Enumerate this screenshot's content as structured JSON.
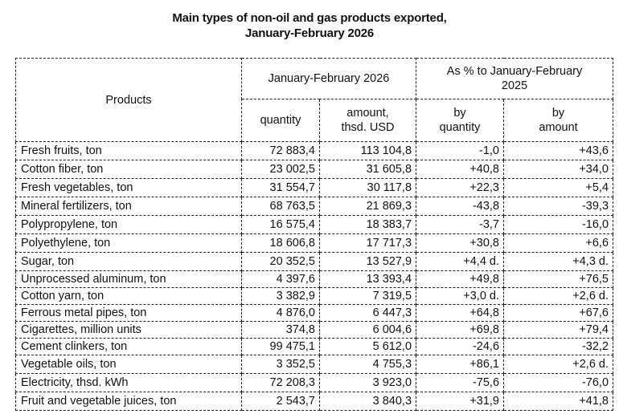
{
  "title": {
    "line1": "Main types of non-oil and gas products exported,",
    "line2": "January-February 2026"
  },
  "table": {
    "headers": {
      "products": "Products",
      "period_group": "January-February 2026",
      "comparison_group_line1": "As % to January-February",
      "comparison_group_line2": "2025",
      "quantity": "quantity",
      "amount_line1": "amount,",
      "amount_line2": "thsd. USD",
      "by_quantity_line1": "by",
      "by_quantity_line2": "quantity",
      "by_amount_line1": "by",
      "by_amount_line2": "amount"
    },
    "rows": [
      {
        "product": "Fresh fruits, ton",
        "quantity": "72 883,4",
        "amount": "113 104,8",
        "pct_quantity": "-1,0",
        "pct_amount": "+43,6"
      },
      {
        "product": "Cotton fiber, ton",
        "quantity": "23 002,5",
        "amount": "31 605,8",
        "pct_quantity": "+40,8",
        "pct_amount": "+34,0"
      },
      {
        "product": "Fresh vegetables, ton",
        "quantity": "31 554,7",
        "amount": "30 117,8",
        "pct_quantity": "+22,3",
        "pct_amount": "+5,4"
      },
      {
        "product": "Mineral fertilizers, ton",
        "quantity": "68 763,5",
        "amount": "21 869,3",
        "pct_quantity": "-43,8",
        "pct_amount": "-39,3"
      },
      {
        "product": "Polypropylene, ton",
        "quantity": "16 575,4",
        "amount": "18 383,7",
        "pct_quantity": "-3,7",
        "pct_amount": "-16,0"
      },
      {
        "product": "Polyethylene, ton",
        "quantity": "18 606,8",
        "amount": "17 717,3",
        "pct_quantity": "+30,8",
        "pct_amount": "+6,6"
      },
      {
        "product": "Sugar, ton",
        "quantity": "20 352,5",
        "amount": "13 527,9",
        "pct_quantity": "+4,4 d.",
        "pct_amount": "+4,3 d."
      },
      {
        "product": "Unprocessed aluminum, ton",
        "quantity": "4 397,6",
        "amount": "13 393,4",
        "pct_quantity": "+49,8",
        "pct_amount": "+76,5"
      },
      {
        "product": "Cotton yarn, ton",
        "quantity": "3 382,9",
        "amount": "7 319,5",
        "pct_quantity": "+3,0 d.",
        "pct_amount": "+2,6 d."
      },
      {
        "product": "Ferrous metal pipes, ton",
        "quantity": "4 876,0",
        "amount": "6 447,3",
        "pct_quantity": "+64,8",
        "pct_amount": "+67,6"
      },
      {
        "product": "Cigarettes, million units",
        "quantity": "374,8",
        "amount": "6 004,6",
        "pct_quantity": "+69,8",
        "pct_amount": "+79,4"
      },
      {
        "product": "Cement clinkers, ton",
        "quantity": "99 475,1",
        "amount": "5 612,0",
        "pct_quantity": "-24,6",
        "pct_amount": "-32,2"
      },
      {
        "product": "Vegetable oils, ton",
        "quantity": "3 352,5",
        "amount": "4 755,3",
        "pct_quantity": "+86,1",
        "pct_amount": "+2,6 d."
      },
      {
        "product": "Electricity, thsd. kWh",
        "quantity": "72 208,3",
        "amount": "3 923,0",
        "pct_quantity": "-75,6",
        "pct_amount": "-76,0"
      },
      {
        "product": "Fruit and vegetable juices, ton",
        "quantity": "2 543,7",
        "amount": "3 840,3",
        "pct_quantity": "+31,9",
        "pct_amount": "+41,8"
      }
    ]
  }
}
